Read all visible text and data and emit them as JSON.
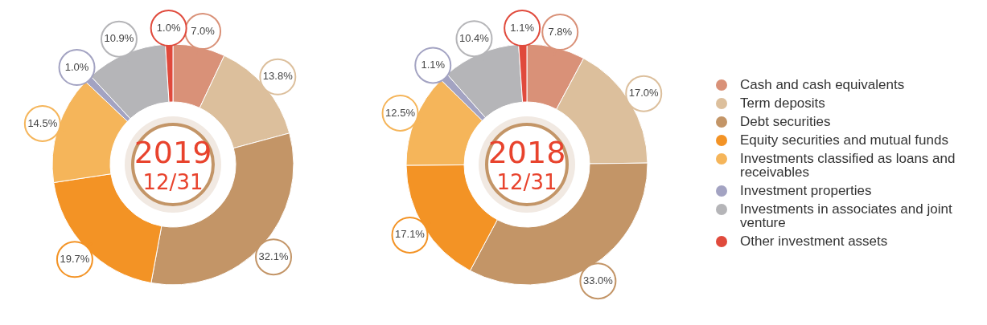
{
  "chart_data": [
    {
      "type": "donut",
      "title": "2019",
      "subtitle": "12/31",
      "categories": [
        null,
        null,
        null,
        null,
        null,
        null,
        null,
        null
      ],
      "values": [
        7.0,
        13.8,
        32.1,
        19.7,
        14.5,
        1.0,
        10.9,
        1.0
      ],
      "value_labels": [
        "7.0%",
        "13.8%",
        "32.1%",
        "19.7%",
        "14.5%",
        "1.0%",
        "10.9%",
        "1.0%"
      ],
      "colors": [
        "#d99178",
        "#dcbf9c",
        "#c39567",
        "#f39325",
        "#f5b55a",
        "#a3a3c2",
        "#b5b5b8",
        "#e04a3c"
      ]
    },
    {
      "type": "donut",
      "title": "2018",
      "subtitle": "12/31",
      "categories": [
        "Cash and cash equivalents",
        "Term deposits",
        "Debt securities",
        "Equity securities and mutual funds",
        "Investments classified as loans and receivables",
        "Investment properties",
        "Investments in associates and joint venture",
        "Other investment assets"
      ],
      "values": [
        7.8,
        17.0,
        33.0,
        17.1,
        12.5,
        1.1,
        10.4,
        1.1
      ],
      "value_labels": [
        "7.8%",
        "17.0%",
        "33.0%",
        "17.1%",
        "12.5%",
        "1.1%",
        "10.4%",
        "1.1%"
      ],
      "colors": [
        "#d99178",
        "#dcbf9c",
        "#c39567",
        "#f39325",
        "#f5b55a",
        "#a3a3c2",
        "#b5b5b8",
        "#e04a3c"
      ],
      "legend": "right"
    }
  ]
}
